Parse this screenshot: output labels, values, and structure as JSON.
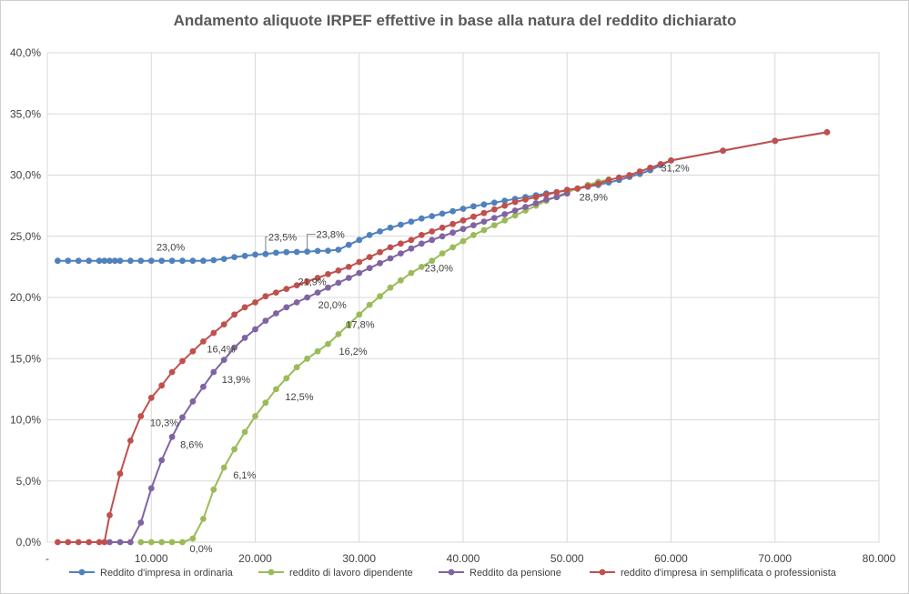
{
  "chart_data": {
    "type": "line",
    "title": "Andamento aliquote IRPEF effettive  in base alla natura del reddito dichiarato",
    "xlabel": "",
    "ylabel": "",
    "xlim": [
      0,
      80000
    ],
    "ylim": [
      0,
      40
    ],
    "x_ticks": [
      {
        "value": 0,
        "label": "-"
      },
      {
        "value": 10000,
        "label": "10.000"
      },
      {
        "value": 20000,
        "label": "20.000"
      },
      {
        "value": 30000,
        "label": "30.000"
      },
      {
        "value": 40000,
        "label": "40.000"
      },
      {
        "value": 50000,
        "label": "50.000"
      },
      {
        "value": 60000,
        "label": "60.000"
      },
      {
        "value": 70000,
        "label": "70.000"
      },
      {
        "value": 80000,
        "label": "80.000"
      }
    ],
    "y_ticks": [
      {
        "value": 0,
        "label": "0,0%"
      },
      {
        "value": 5,
        "label": "5,0%"
      },
      {
        "value": 10,
        "label": "10,0%"
      },
      {
        "value": 15,
        "label": "15,0%"
      },
      {
        "value": 20,
        "label": "20,0%"
      },
      {
        "value": 25,
        "label": "25,0%"
      },
      {
        "value": 30,
        "label": "30,0%"
      },
      {
        "value": 35,
        "label": "35,0%"
      },
      {
        "value": 40,
        "label": "40,0%"
      }
    ],
    "grid": true,
    "legend_position": "bottom",
    "series": [
      {
        "name": "Reddito d'impresa in ordinaria",
        "color": "#4f81bd",
        "points": [
          [
            1000,
            23.0
          ],
          [
            2000,
            23.0
          ],
          [
            3000,
            23.0
          ],
          [
            4000,
            23.0
          ],
          [
            5000,
            23.0
          ],
          [
            5500,
            23.0
          ],
          [
            6000,
            23.0
          ],
          [
            6500,
            23.0
          ],
          [
            7000,
            23.0
          ],
          [
            8000,
            23.0
          ],
          [
            9000,
            23.0
          ],
          [
            10000,
            23.0
          ],
          [
            11000,
            23.0
          ],
          [
            12000,
            23.0
          ],
          [
            13000,
            23.0
          ],
          [
            14000,
            23.0
          ],
          [
            15000,
            23.0
          ],
          [
            16000,
            23.05
          ],
          [
            17000,
            23.15
          ],
          [
            18000,
            23.3
          ],
          [
            19000,
            23.4
          ],
          [
            20000,
            23.5
          ],
          [
            21000,
            23.55
          ],
          [
            22000,
            23.65
          ],
          [
            23000,
            23.7
          ],
          [
            24000,
            23.72
          ],
          [
            25000,
            23.75
          ],
          [
            26000,
            23.8
          ],
          [
            27000,
            23.82
          ],
          [
            28000,
            23.9
          ],
          [
            29000,
            24.3
          ],
          [
            30000,
            24.7
          ],
          [
            31000,
            25.1
          ],
          [
            32000,
            25.4
          ],
          [
            33000,
            25.7
          ],
          [
            34000,
            25.95
          ],
          [
            35000,
            26.2
          ],
          [
            36000,
            26.45
          ],
          [
            37000,
            26.65
          ],
          [
            38000,
            26.85
          ],
          [
            39000,
            27.05
          ],
          [
            40000,
            27.25
          ],
          [
            41000,
            27.45
          ],
          [
            42000,
            27.6
          ],
          [
            43000,
            27.75
          ],
          [
            44000,
            27.9
          ],
          [
            45000,
            28.05
          ],
          [
            46000,
            28.2
          ],
          [
            47000,
            28.35
          ],
          [
            48000,
            28.5
          ],
          [
            49000,
            28.6
          ],
          [
            50000,
            28.75
          ],
          [
            51000,
            28.9
          ],
          [
            52000,
            29.05
          ],
          [
            53000,
            29.2
          ],
          [
            54000,
            29.4
          ],
          [
            55000,
            29.6
          ],
          [
            56000,
            29.85
          ],
          [
            57000,
            30.1
          ],
          [
            58000,
            30.4
          ],
          [
            59000,
            30.8
          ],
          [
            60000,
            31.2
          ],
          [
            65000,
            32.0
          ],
          [
            70000,
            32.8
          ],
          [
            75000,
            33.5
          ]
        ]
      },
      {
        "name": "reddito di lavoro dipendente",
        "color": "#9bbb59",
        "points": [
          [
            9000,
            0.0
          ],
          [
            10000,
            0.0
          ],
          [
            11000,
            0.0
          ],
          [
            12000,
            0.0
          ],
          [
            13000,
            0.0
          ],
          [
            14000,
            0.3
          ],
          [
            15000,
            1.9
          ],
          [
            16000,
            4.3
          ],
          [
            17000,
            6.1
          ],
          [
            18000,
            7.6
          ],
          [
            19000,
            9.0
          ],
          [
            20000,
            10.3
          ],
          [
            21000,
            11.4
          ],
          [
            22000,
            12.5
          ],
          [
            23000,
            13.4
          ],
          [
            24000,
            14.3
          ],
          [
            25000,
            15.0
          ],
          [
            26000,
            15.6
          ],
          [
            27000,
            16.2
          ],
          [
            28000,
            17.0
          ],
          [
            29000,
            17.8
          ],
          [
            30000,
            18.6
          ],
          [
            31000,
            19.4
          ],
          [
            32000,
            20.1
          ],
          [
            33000,
            20.8
          ],
          [
            34000,
            21.4
          ],
          [
            35000,
            22.0
          ],
          [
            36000,
            22.5
          ],
          [
            37000,
            23.0
          ],
          [
            38000,
            23.6
          ],
          [
            39000,
            24.1
          ],
          [
            40000,
            24.6
          ],
          [
            41000,
            25.1
          ],
          [
            42000,
            25.5
          ],
          [
            43000,
            25.9
          ],
          [
            44000,
            26.3
          ],
          [
            45000,
            26.7
          ],
          [
            46000,
            27.1
          ],
          [
            47000,
            27.5
          ],
          [
            48000,
            27.9
          ],
          [
            49000,
            28.25
          ],
          [
            50000,
            28.6
          ],
          [
            51000,
            28.9
          ],
          [
            52000,
            29.2
          ],
          [
            53000,
            29.45
          ],
          [
            54000,
            29.65
          ]
        ]
      },
      {
        "name": "Reddito da pensione",
        "color": "#8064a2",
        "points": [
          [
            6000,
            0.0
          ],
          [
            7000,
            0.0
          ],
          [
            8000,
            0.0
          ],
          [
            9000,
            1.6
          ],
          [
            10000,
            4.4
          ],
          [
            11000,
            6.7
          ],
          [
            12000,
            8.6
          ],
          [
            13000,
            10.2
          ],
          [
            14000,
            11.5
          ],
          [
            15000,
            12.7
          ],
          [
            16000,
            13.9
          ],
          [
            17000,
            14.9
          ],
          [
            18000,
            15.9
          ],
          [
            19000,
            16.7
          ],
          [
            20000,
            17.4
          ],
          [
            21000,
            18.1
          ],
          [
            22000,
            18.7
          ],
          [
            23000,
            19.2
          ],
          [
            24000,
            19.6
          ],
          [
            25000,
            20.0
          ],
          [
            26000,
            20.4
          ],
          [
            27000,
            20.8
          ],
          [
            28000,
            21.2
          ],
          [
            29000,
            21.6
          ],
          [
            30000,
            22.0
          ],
          [
            31000,
            22.4
          ],
          [
            32000,
            22.8
          ],
          [
            33000,
            23.2
          ],
          [
            34000,
            23.6
          ],
          [
            35000,
            24.0
          ],
          [
            36000,
            24.4
          ],
          [
            37000,
            24.7
          ],
          [
            38000,
            25.0
          ],
          [
            39000,
            25.3
          ],
          [
            40000,
            25.6
          ],
          [
            41000,
            25.9
          ],
          [
            42000,
            26.2
          ],
          [
            43000,
            26.5
          ],
          [
            44000,
            26.8
          ],
          [
            45000,
            27.1
          ],
          [
            46000,
            27.4
          ],
          [
            47000,
            27.7
          ],
          [
            48000,
            28.0
          ],
          [
            49000,
            28.2
          ],
          [
            50000,
            28.5
          ]
        ]
      },
      {
        "name": "reddito d'impresa in semplificata o professionista",
        "color": "#c0504d",
        "points": [
          [
            1000,
            0.0
          ],
          [
            2000,
            0.0
          ],
          [
            3000,
            0.0
          ],
          [
            4000,
            0.0
          ],
          [
            5000,
            0.0
          ],
          [
            5500,
            0.0
          ],
          [
            6000,
            2.2
          ],
          [
            7000,
            5.6
          ],
          [
            8000,
            8.3
          ],
          [
            9000,
            10.3
          ],
          [
            10000,
            11.8
          ],
          [
            11000,
            12.8
          ],
          [
            12000,
            13.9
          ],
          [
            13000,
            14.8
          ],
          [
            14000,
            15.6
          ],
          [
            15000,
            16.4
          ],
          [
            16000,
            17.1
          ],
          [
            17000,
            17.8
          ],
          [
            18000,
            18.6
          ],
          [
            19000,
            19.2
          ],
          [
            20000,
            19.6
          ],
          [
            21000,
            20.1
          ],
          [
            22000,
            20.4
          ],
          [
            23000,
            20.7
          ],
          [
            24000,
            21.0
          ],
          [
            25000,
            21.3
          ],
          [
            26000,
            21.6
          ],
          [
            27000,
            21.9
          ],
          [
            28000,
            22.2
          ],
          [
            29000,
            22.5
          ],
          [
            30000,
            22.9
          ],
          [
            31000,
            23.3
          ],
          [
            32000,
            23.7
          ],
          [
            33000,
            24.1
          ],
          [
            34000,
            24.4
          ],
          [
            35000,
            24.7
          ],
          [
            36000,
            25.1
          ],
          [
            37000,
            25.4
          ],
          [
            38000,
            25.7
          ],
          [
            39000,
            26.0
          ],
          [
            40000,
            26.3
          ],
          [
            41000,
            26.6
          ],
          [
            42000,
            26.9
          ],
          [
            43000,
            27.2
          ],
          [
            44000,
            27.5
          ],
          [
            45000,
            27.8
          ],
          [
            46000,
            28.0
          ],
          [
            47000,
            28.2
          ],
          [
            48000,
            28.4
          ],
          [
            49000,
            28.6
          ],
          [
            50000,
            28.8
          ],
          [
            51000,
            28.9
          ],
          [
            52000,
            29.1
          ],
          [
            53000,
            29.3
          ],
          [
            54000,
            29.6
          ],
          [
            55000,
            29.8
          ],
          [
            56000,
            30.0
          ],
          [
            57000,
            30.3
          ],
          [
            58000,
            30.6
          ],
          [
            59000,
            30.9
          ],
          [
            60000,
            31.2
          ],
          [
            65000,
            32.0
          ],
          [
            70000,
            32.8
          ],
          [
            75000,
            33.5
          ]
        ]
      }
    ],
    "annotations": [
      {
        "text": "23,0%",
        "x": 14000,
        "y": 23.0,
        "dx": -40,
        "dy": -11
      },
      {
        "text": "23,5%",
        "x": 21000,
        "y": 23.55,
        "dx": 3,
        "dy": -15,
        "leader": true
      },
      {
        "text": "23,8%",
        "x": 25000,
        "y": 23.75,
        "dx": 10,
        "dy": -15,
        "leader": true
      },
      {
        "text": "21,9%",
        "x": 27000,
        "y": 21.9,
        "dx": -33,
        "dy": 12
      },
      {
        "text": "20,0%",
        "x": 25000,
        "y": 20.0,
        "dx": 12,
        "dy": 12
      },
      {
        "text": "17,8%",
        "x": 29000,
        "y": 17.8,
        "dx": -3,
        "dy": 4
      },
      {
        "text": "16,2%",
        "x": 27000,
        "y": 16.2,
        "dx": 12,
        "dy": 12
      },
      {
        "text": "12,5%",
        "x": 22000,
        "y": 12.5,
        "dx": 10,
        "dy": 12
      },
      {
        "text": "23,0%",
        "x": 37000,
        "y": 23.0,
        "dx": -8,
        "dy": 12
      },
      {
        "text": "16,4%",
        "x": 15000,
        "y": 16.4,
        "dx": 4,
        "dy": 12
      },
      {
        "text": "13,9%",
        "x": 16000,
        "y": 13.9,
        "dx": 9,
        "dy": 12
      },
      {
        "text": "10,3%",
        "x": 9000,
        "y": 10.3,
        "dx": 10,
        "dy": 11
      },
      {
        "text": "8,6%",
        "x": 12000,
        "y": 8.6,
        "dx": 9,
        "dy": 12
      },
      {
        "text": "6,1%",
        "x": 17000,
        "y": 6.1,
        "dx": 10,
        "dy": 12
      },
      {
        "text": "0,0%",
        "x": 13000,
        "y": 0.0,
        "dx": 8,
        "dy": 11
      },
      {
        "text": "28,9%",
        "x": 51000,
        "y": 28.9,
        "dx": 2,
        "dy": 13
      },
      {
        "text": "31,2%",
        "x": 60000,
        "y": 31.2,
        "dx": -11,
        "dy": 12
      }
    ]
  }
}
